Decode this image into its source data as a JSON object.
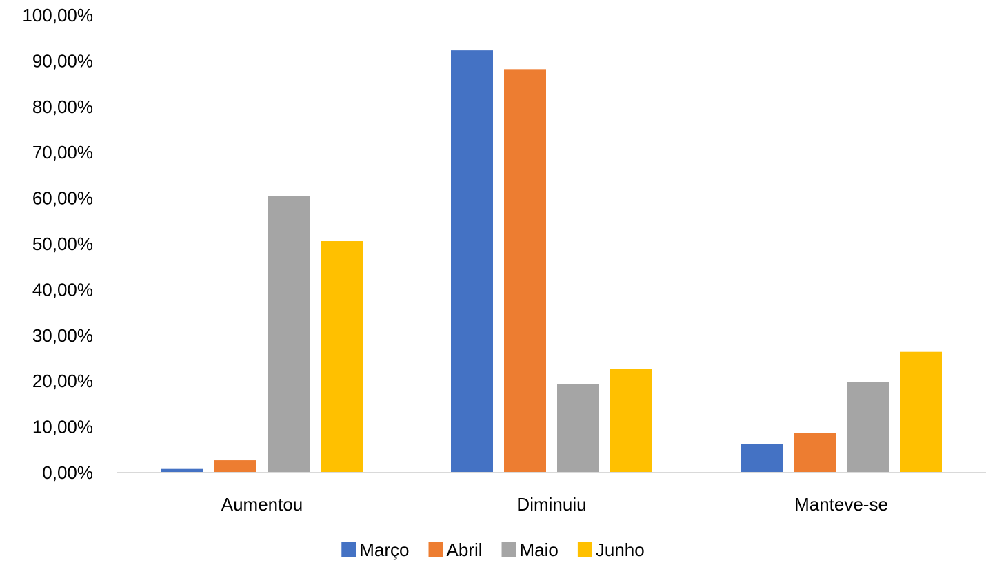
{
  "chart_data": {
    "type": "bar",
    "categories": [
      "Aumentou",
      "Diminuiu",
      "Manteve-se"
    ],
    "series": [
      {
        "name": "Março",
        "color": "#4472C4",
        "values": [
          0.8,
          92.3,
          6.3
        ]
      },
      {
        "name": "Abril",
        "color": "#ED7D31",
        "values": [
          2.7,
          88.2,
          8.6
        ]
      },
      {
        "name": "Maio",
        "color": "#A5A5A5",
        "values": [
          60.5,
          19.4,
          19.8
        ]
      },
      {
        "name": "Junho",
        "color": "#FFC000",
        "values": [
          50.6,
          22.6,
          26.4
        ]
      }
    ],
    "y_ticks": [
      "0,00%",
      "10,00%",
      "20,00%",
      "30,00%",
      "40,00%",
      "50,00%",
      "60,00%",
      "70,00%",
      "80,00%",
      "90,00%",
      "100,00%"
    ],
    "ylim": [
      0,
      100
    ],
    "grid": false,
    "legend": "bottom",
    "axis_color": "#D9D9D9"
  }
}
